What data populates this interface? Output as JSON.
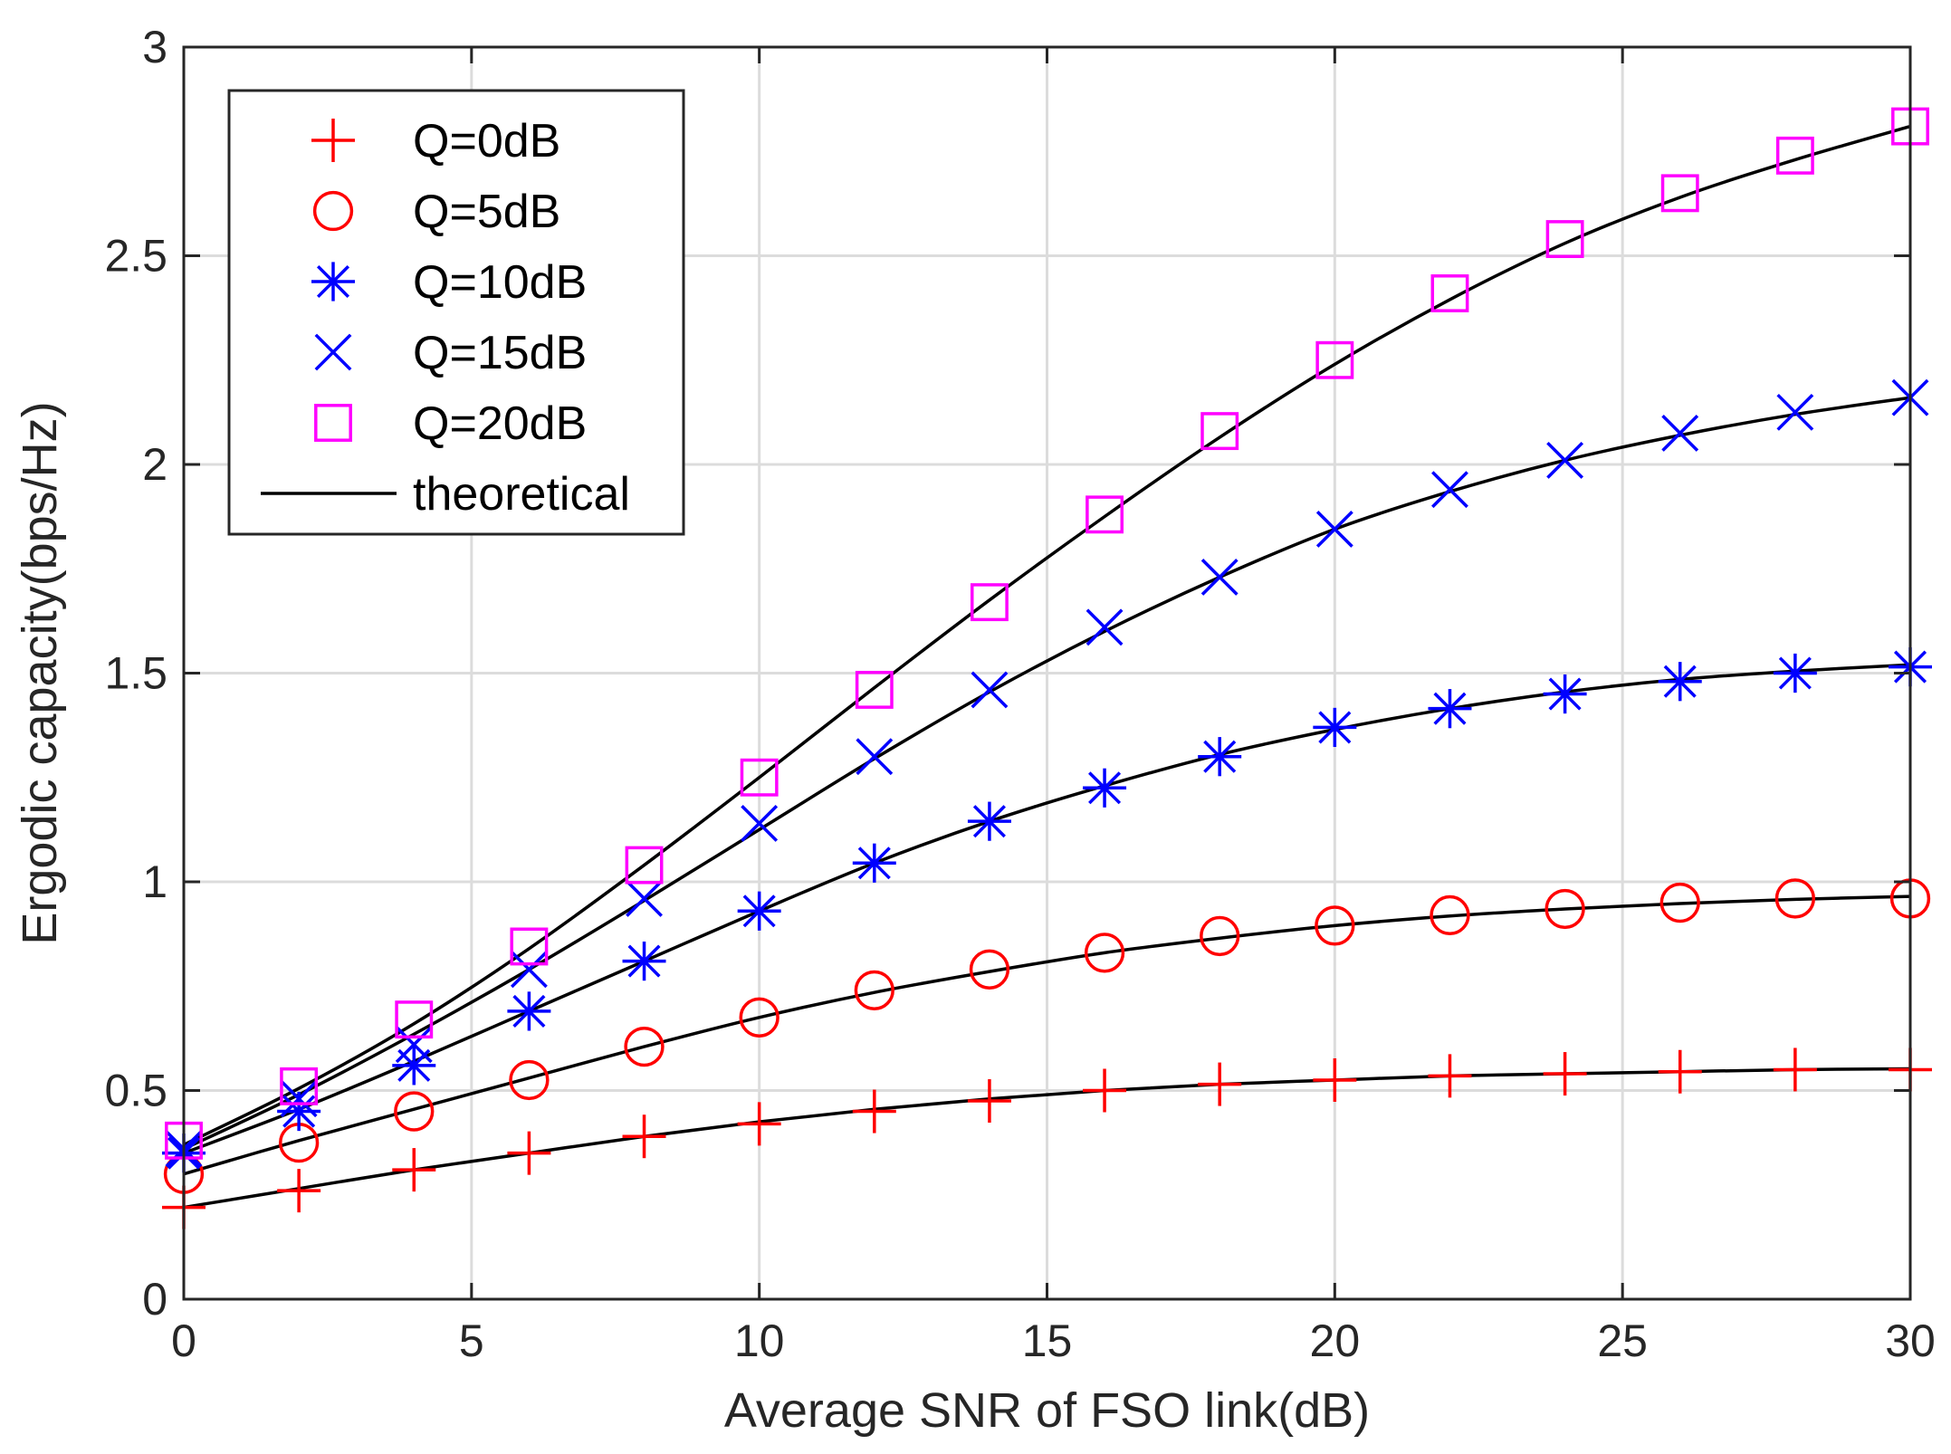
{
  "chart_data": {
    "type": "line",
    "title": "",
    "xlabel": "Average SNR of FSO link(dB)",
    "ylabel": "Ergodic capacity(bps/Hz)",
    "xlim": [
      0,
      30
    ],
    "ylim": [
      0,
      3
    ],
    "xticks": [
      0,
      5,
      10,
      15,
      20,
      25,
      30
    ],
    "xtick_labels": [
      "0",
      "5",
      "10",
      "15",
      "20",
      "25",
      "30"
    ],
    "yticks": [
      0,
      0.5,
      1,
      1.5,
      2,
      2.5,
      3
    ],
    "ytick_labels": [
      "0",
      "0.5",
      "1",
      "1.5",
      "2",
      "2.5",
      "3"
    ],
    "grid": true,
    "legend_position": "top-left",
    "x": [
      0,
      2,
      4,
      6,
      8,
      10,
      12,
      14,
      16,
      18,
      20,
      22,
      24,
      26,
      28,
      30
    ],
    "series": [
      {
        "name": "Q=0dB",
        "marker": "plus",
        "color": "#ff0000",
        "values": [
          0.22,
          0.26,
          0.31,
          0.35,
          0.39,
          0.42,
          0.45,
          0.475,
          0.5,
          0.515,
          0.525,
          0.535,
          0.54,
          0.545,
          0.55,
          0.55
        ]
      },
      {
        "name": "Q=5dB",
        "marker": "circle",
        "color": "#ff0000",
        "values": [
          0.3,
          0.375,
          0.45,
          0.525,
          0.605,
          0.675,
          0.74,
          0.79,
          0.83,
          0.87,
          0.895,
          0.92,
          0.935,
          0.95,
          0.96,
          0.96
        ]
      },
      {
        "name": "Q=10dB",
        "marker": "asterisk",
        "color": "#0000ff",
        "values": [
          0.35,
          0.45,
          0.56,
          0.69,
          0.81,
          0.93,
          1.045,
          1.145,
          1.225,
          1.3,
          1.37,
          1.415,
          1.45,
          1.48,
          1.5,
          1.515
        ]
      },
      {
        "name": "Q=15dB",
        "marker": "cross",
        "color": "#0000ff",
        "values": [
          0.36,
          0.48,
          0.61,
          0.79,
          0.96,
          1.14,
          1.3,
          1.46,
          1.61,
          1.73,
          1.845,
          1.94,
          2.01,
          2.075,
          2.125,
          2.16
        ]
      },
      {
        "name": "Q=20dB",
        "marker": "square",
        "color": "#ff00ff",
        "values": [
          0.38,
          0.51,
          0.67,
          0.845,
          1.04,
          1.25,
          1.46,
          1.67,
          1.88,
          2.08,
          2.25,
          2.41,
          2.54,
          2.65,
          2.74,
          2.81
        ]
      }
    ],
    "theoretical": {
      "name": "theoretical",
      "color": "#000000",
      "x": [
        0,
        2,
        4,
        6,
        8,
        10,
        12,
        14,
        16,
        18,
        20,
        22,
        24,
        26,
        28,
        30
      ],
      "curves": [
        [
          0.22,
          0.265,
          0.31,
          0.35,
          0.39,
          0.425,
          0.455,
          0.48,
          0.5,
          0.515,
          0.525,
          0.535,
          0.54,
          0.545,
          0.55,
          0.552
        ],
        [
          0.3,
          0.38,
          0.455,
          0.53,
          0.605,
          0.675,
          0.735,
          0.785,
          0.83,
          0.865,
          0.895,
          0.918,
          0.935,
          0.948,
          0.958,
          0.965
        ],
        [
          0.35,
          0.455,
          0.57,
          0.69,
          0.81,
          0.93,
          1.045,
          1.145,
          1.23,
          1.305,
          1.365,
          1.415,
          1.455,
          1.485,
          1.505,
          1.52
        ],
        [
          0.36,
          0.49,
          0.635,
          0.79,
          0.955,
          1.125,
          1.295,
          1.455,
          1.6,
          1.73,
          1.845,
          1.935,
          2.01,
          2.07,
          2.12,
          2.16
        ],
        [
          0.37,
          0.505,
          0.66,
          0.84,
          1.04,
          1.25,
          1.465,
          1.675,
          1.875,
          2.065,
          2.24,
          2.395,
          2.53,
          2.64,
          2.73,
          2.81
        ]
      ]
    }
  }
}
